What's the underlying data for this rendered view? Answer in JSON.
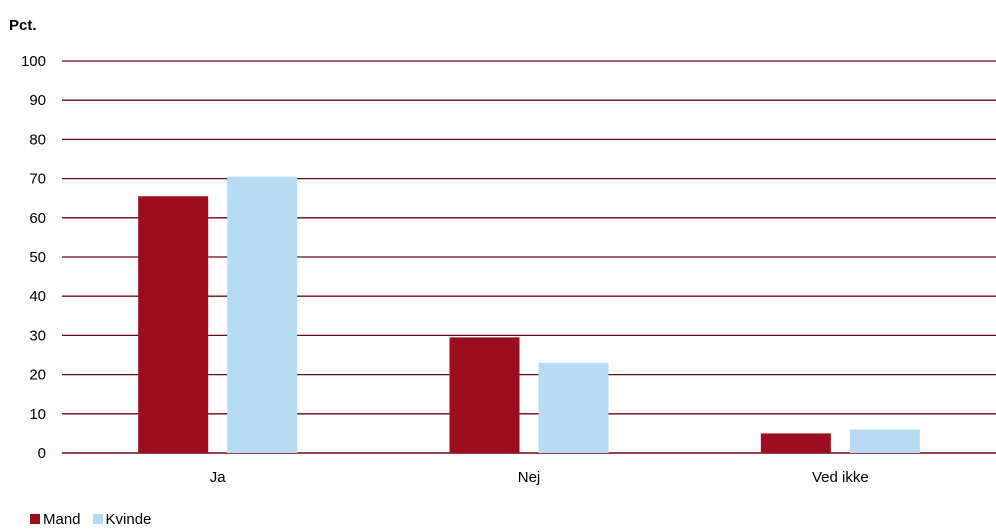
{
  "chart_data": {
    "type": "bar",
    "unit_label": "Pct.",
    "categories": [
      "Ja",
      "Nej",
      "Ved ikke"
    ],
    "series": [
      {
        "name": "Mand",
        "color": "#9b0d1f",
        "values": [
          65.5,
          29.5,
          5
        ]
      },
      {
        "name": "Kvinde",
        "color": "#b7dbf2",
        "values": [
          70.5,
          23,
          6
        ]
      }
    ],
    "ylim": [
      0,
      100
    ],
    "yticks": [
      0,
      10,
      20,
      30,
      40,
      50,
      60,
      70,
      80,
      90,
      100
    ],
    "grid": true,
    "gridline_color": "#6b0a12",
    "legend_position": "bottom-left"
  }
}
